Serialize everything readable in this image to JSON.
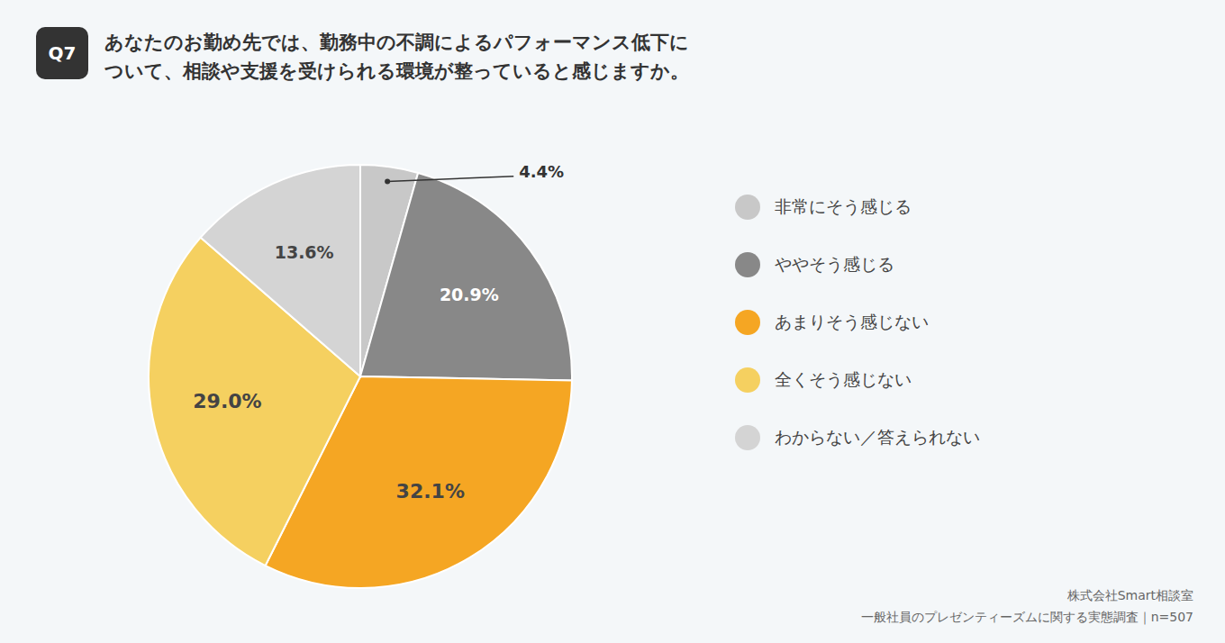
{
  "chart_data": {
    "type": "pie",
    "badge": "Q7",
    "title": [
      "あなたのお勤め先では、勤務中の不調によるパフォーマンス低下に",
      "ついて、相談や支援を受けられる環境が整っていると感じますか。"
    ],
    "categories": [
      "非常にそう感じる",
      "ややそう感じる",
      "あまりそう感じない",
      "全くそう感じない",
      "わからない／答えられない"
    ],
    "values": [
      4.4,
      20.9,
      32.1,
      29.0,
      13.6
    ],
    "value_labels": [
      "4.4%",
      "20.9%",
      "32.1%",
      "29.0%",
      "13.6%"
    ],
    "colors": [
      "#c8c8c8",
      "#888888",
      "#F5A623",
      "#F5D060",
      "#d4d4d4"
    ],
    "data_labels": true,
    "legend": "right",
    "source": [
      "株式会社Smart相談室",
      "一般社員のプレゼンティーズムに関する実態調査｜n=507"
    ]
  }
}
